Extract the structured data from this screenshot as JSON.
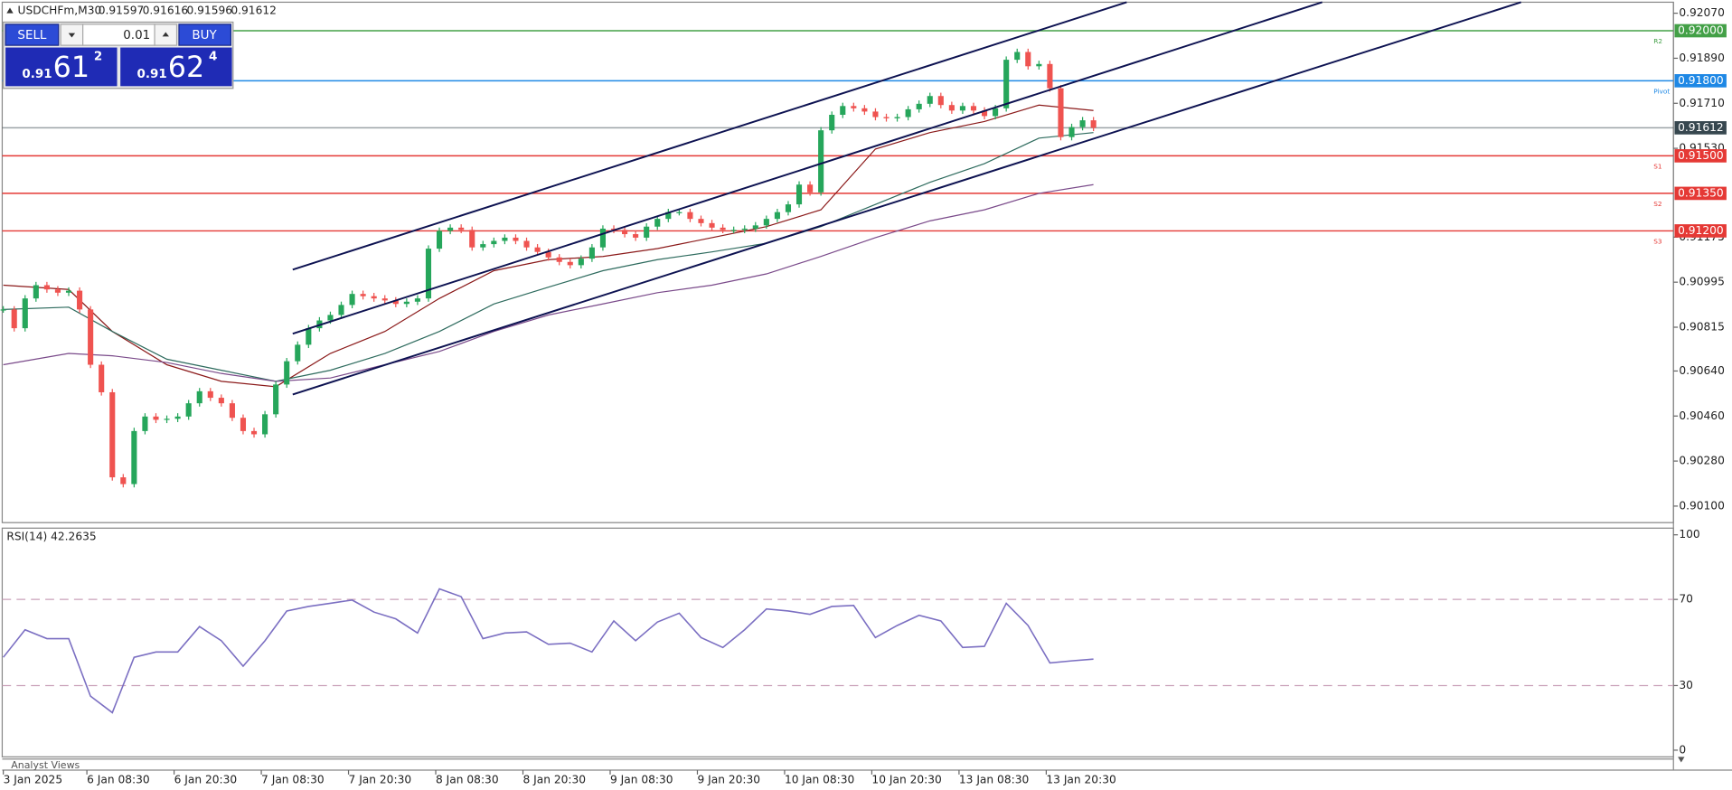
{
  "header": {
    "symbol": "USDCHFm,M30",
    "ohlc": [
      "0.91597",
      "0.91616",
      "0.91596",
      "0.91612"
    ]
  },
  "trade_panel": {
    "sell": "SELL",
    "lot": "0.01",
    "buy": "BUY",
    "bid": {
      "big": "0.91",
      "main": "61",
      "sup": "2"
    },
    "ask": {
      "big": "0.91",
      "main": "62",
      "sup": "4"
    }
  },
  "chart_data": [
    {
      "type": "candlestick",
      "up_color": "#26a65b",
      "down_color": "#ef5350",
      "xlim": [
        -0.3,
        459.6
      ],
      "ylim": [
        0.90034,
        0.92114
      ],
      "xticks": [
        {
          "value": 0,
          "label": "3 Jan 2025"
        },
        {
          "value": 23,
          "label": "6 Jan 08:30"
        },
        {
          "value": 47,
          "label": "6 Jan 20:30"
        },
        {
          "value": 71,
          "label": "7 Jan 08:30"
        },
        {
          "value": 95,
          "label": "7 Jan 20:30"
        },
        {
          "value": 119,
          "label": "8 Jan 08:30"
        },
        {
          "value": 143,
          "label": "8 Jan 20:30"
        },
        {
          "value": 167,
          "label": "9 Jan 08:30"
        },
        {
          "value": 191,
          "label": "9 Jan 20:30"
        },
        {
          "value": 215,
          "label": "10 Jan 08:30"
        },
        {
          "value": 239,
          "label": "10 Jan 20:30"
        },
        {
          "value": 263,
          "label": "13 Jan 08:30"
        },
        {
          "value": 287,
          "label": "13 Jan 20:30"
        }
      ],
      "yticks": [
        {
          "value": 0.9207,
          "label": "0.92070"
        },
        {
          "value": 0.9189,
          "label": "0.91890"
        },
        {
          "value": 0.9171,
          "label": "0.91710"
        },
        {
          "value": 0.9153,
          "label": "0.91530"
        },
        {
          "value": 0.91175,
          "label": "0.91175"
        },
        {
          "value": 0.90995,
          "label": "0.90995"
        },
        {
          "value": 0.90815,
          "label": "0.90815"
        },
        {
          "value": 0.9064,
          "label": "0.90640"
        },
        {
          "value": 0.9046,
          "label": "0.90460"
        },
        {
          "value": 0.9028,
          "label": "0.90280"
        },
        {
          "value": 0.901,
          "label": "0.90100"
        }
      ],
      "x": [
        0,
        3,
        6,
        9,
        12,
        15,
        18,
        21,
        24,
        27,
        30,
        33,
        36,
        39,
        42,
        45,
        48,
        51,
        54,
        57,
        60,
        63,
        66,
        69,
        72,
        75,
        78,
        81,
        84,
        87,
        90,
        93,
        96,
        99,
        102,
        105,
        108,
        111,
        114,
        117,
        120,
        123,
        126,
        129,
        132,
        135,
        138,
        141,
        144,
        147,
        150,
        153,
        156,
        159,
        162,
        165,
        168,
        171,
        174,
        177,
        180,
        183,
        186,
        189,
        192,
        195,
        198,
        201,
        204,
        207,
        210,
        213,
        216,
        219,
        222,
        225,
        228,
        231,
        234,
        237,
        240,
        243,
        246,
        249,
        252,
        255,
        258,
        261,
        264,
        267,
        270,
        273,
        276,
        279,
        282,
        285,
        288,
        291,
        294,
        297,
        300
      ],
      "close": [
        0.90886,
        0.90811,
        0.9093,
        0.90983,
        0.90966,
        0.90953,
        0.90961,
        0.90886,
        0.90665,
        0.90555,
        0.90215,
        0.90188,
        0.904,
        0.90458,
        0.90445,
        0.90449,
        0.90458,
        0.90511,
        0.90559,
        0.90533,
        0.90511,
        0.90453,
        0.904,
        0.90387,
        0.90467,
        0.90586,
        0.90679,
        0.90745,
        0.90811,
        0.90842,
        0.90864,
        0.90904,
        0.90948,
        0.90939,
        0.9093,
        0.90922,
        0.90908,
        0.90917,
        0.9093,
        0.91129,
        0.912,
        0.91213,
        0.91204,
        0.91134,
        0.91147,
        0.9116,
        0.91173,
        0.9116,
        0.91134,
        0.91116,
        0.91094,
        0.91076,
        0.91063,
        0.91089,
        0.91134,
        0.91209,
        0.91204,
        0.91187,
        0.91173,
        0.91217,
        0.91248,
        0.91275,
        0.91275,
        0.91248,
        0.91231,
        0.91213,
        0.91204,
        0.91204,
        0.91209,
        0.91222,
        0.91248,
        0.91275,
        0.91306,
        0.91385,
        0.91354,
        0.91602,
        0.91664,
        0.91699,
        0.9169,
        0.91677,
        0.91655,
        0.9165,
        0.91655,
        0.91686,
        0.91708,
        0.91739,
        0.91703,
        0.91681,
        0.91699,
        0.91681,
        0.91659,
        0.9169,
        0.91884,
        0.91915,
        0.91858,
        0.91867,
        0.9177,
        0.91575,
        0.91615,
        0.91642,
        0.91612
      ],
      "line_x": [
        0,
        18,
        30,
        45,
        60,
        75,
        90,
        105,
        120,
        135,
        150,
        165,
        180,
        195,
        210,
        225,
        240,
        255,
        270,
        285,
        300
      ],
      "lines": [
        {
          "color": "#8b1a1a",
          "values": [
            0.90983,
            0.90966,
            0.90798,
            0.90665,
            0.90599,
            0.90577,
            0.9071,
            0.90798,
            0.9093,
            0.91041,
            0.91085,
            0.91098,
            0.91129,
            0.91173,
            0.91217,
            0.91284,
            0.91527,
            0.91593,
            0.91637,
            0.91703,
            0.91681
          ]
        },
        {
          "color": "#2e6b5e",
          "values": [
            0.90886,
            0.90895,
            0.90798,
            0.90687,
            0.90643,
            0.90599,
            0.90643,
            0.9071,
            0.90798,
            0.90908,
            0.90975,
            0.91041,
            0.91085,
            0.91116,
            0.91151,
            0.91217,
            0.91306,
            0.91394,
            0.91469,
            0.91571,
            0.91593
          ]
        },
        {
          "color": "#7a4a8a",
          "values": [
            0.90665,
            0.9071,
            0.90701,
            0.90674,
            0.9063,
            0.90599,
            0.90612,
            0.90665,
            0.90718,
            0.90798,
            0.90864,
            0.90908,
            0.90953,
            0.90983,
            0.91028,
            0.91098,
            0.91173,
            0.9124,
            0.91284,
            0.9135,
            0.91385
          ]
        }
      ],
      "levels": [
        {
          "value": 0.92,
          "label": "0.92000",
          "tag": "R2",
          "color": "#43a047"
        },
        {
          "value": 0.918,
          "label": "0.91800",
          "tag": "Pivot",
          "color": "#1e88e5"
        },
        {
          "value": 0.91612,
          "label": "0.91612",
          "color": "#37474f"
        },
        {
          "value": 0.915,
          "label": "0.91500",
          "tag": "S1",
          "color": "#e53935"
        },
        {
          "value": 0.9135,
          "label": "0.91350",
          "tag": "S2",
          "color": "#e53935"
        },
        {
          "value": 0.912,
          "label": "0.91200",
          "tag": "S3",
          "color": "#e53935"
        }
      ]
    },
    {
      "type": "line",
      "title": "RSI(14) 42.2635",
      "color": "#7b6fc2",
      "xlim": [
        -0.3,
        459.6
      ],
      "ylim": [
        -3.1,
        103.1
      ],
      "yticks": [
        0,
        30,
        70,
        100
      ],
      "levels": [
        30,
        70
      ],
      "x": [
        0,
        6,
        12,
        18,
        24,
        30,
        36,
        42,
        48,
        54,
        60,
        66,
        72,
        78,
        84,
        90,
        96,
        102,
        108,
        114,
        120,
        126,
        132,
        138,
        144,
        150,
        156,
        162,
        168,
        174,
        180,
        186,
        192,
        198,
        204,
        210,
        216,
        222,
        228,
        234,
        240,
        246,
        252,
        258,
        264,
        270,
        276,
        282,
        288,
        294,
        300
      ],
      "values": [
        43.1,
        55.9,
        51.8,
        51.8,
        25.1,
        17.4,
        43.1,
        45.6,
        45.6,
        57.4,
        50.8,
        39,
        50.8,
        64.6,
        66.7,
        68.2,
        69.7,
        64.1,
        61,
        54.4,
        74.9,
        71.3,
        51.8,
        54.4,
        54.9,
        49.2,
        49.7,
        45.6,
        60,
        50.8,
        59.5,
        63.6,
        52.3,
        47.7,
        55.9,
        65.6,
        64.6,
        63.1,
        66.7,
        67.2,
        52.3,
        57.9,
        62.6,
        60,
        47.7,
        48.2,
        68.2,
        57.9,
        40.5,
        41.5,
        42.3
      ]
    }
  ],
  "footer": "Analyst Views"
}
